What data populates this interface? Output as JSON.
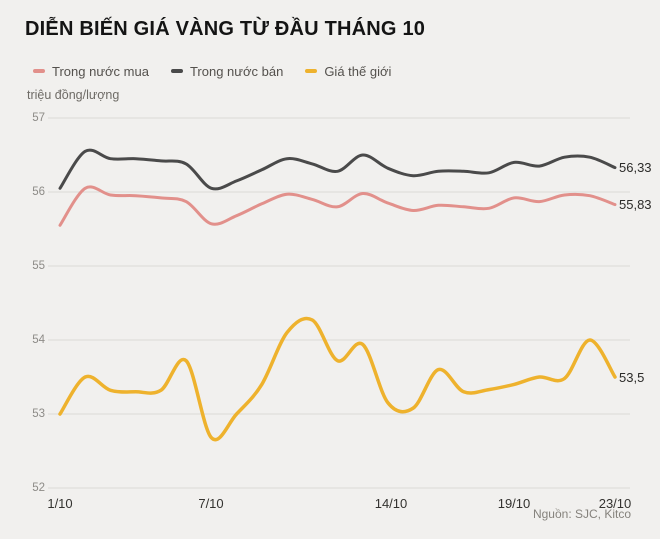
{
  "title": "DIỄN BIẾN GIÁ VÀNG TỪ ĐẦU THÁNG 10",
  "unit_label": "triệu đồng/lượng",
  "source": "Nguồn: SJC, Kitco",
  "colors": {
    "background": "#f1f0ee",
    "gridline": "#dbdad7",
    "buy_line": "#e2908b",
    "sell_line": "#4a4a4a",
    "world_line": "#eeb22d"
  },
  "legend": {
    "items": [
      {
        "label": "Trong nước mua",
        "color": "#e2908b"
      },
      {
        "label": "Trong nước bán",
        "color": "#4a4a4a"
      },
      {
        "label": "Giá thế giới",
        "color": "#eeb22d"
      }
    ]
  },
  "chart_data": {
    "type": "line",
    "title": "DIỄN BIẾN GIÁ VÀNG TỪ ĐẦU THÁNG 10",
    "ylabel": "triệu đồng/lượng",
    "xlabel": "",
    "ylim": [
      52,
      57
    ],
    "grid": true,
    "legend_position": "top",
    "x_days": [
      1,
      2,
      3,
      4,
      5,
      6,
      7,
      8,
      9,
      10,
      11,
      12,
      13,
      14,
      15,
      16,
      17,
      18,
      19,
      20,
      21,
      22,
      23
    ],
    "xticks": [
      {
        "day": 1,
        "label": "1/10"
      },
      {
        "day": 7,
        "label": "7/10"
      },
      {
        "day": 14,
        "label": "14/10"
      },
      {
        "day": 19,
        "label": "19/10"
      },
      {
        "day": 23,
        "label": "23/10"
      }
    ],
    "yticks": [
      "57",
      "56",
      "55",
      "54",
      "53",
      "52"
    ],
    "series": [
      {
        "key": "buy",
        "name": "Trong nước mua",
        "color": "#e2908b",
        "width": 3,
        "end_label": "55,83",
        "values": [
          55.55,
          56.05,
          55.96,
          55.95,
          55.92,
          55.87,
          55.57,
          55.68,
          55.84,
          55.97,
          55.9,
          55.8,
          55.98,
          55.85,
          55.75,
          55.82,
          55.8,
          55.78,
          55.92,
          55.87,
          55.96,
          55.95,
          55.83
        ]
      },
      {
        "key": "sell",
        "name": "Trong nước bán",
        "color": "#4a4a4a",
        "width": 3,
        "end_label": "56,33",
        "values": [
          56.05,
          56.55,
          56.45,
          56.45,
          56.42,
          56.38,
          56.05,
          56.15,
          56.3,
          56.45,
          56.38,
          56.28,
          56.5,
          56.32,
          56.22,
          56.28,
          56.28,
          56.26,
          56.4,
          56.35,
          56.47,
          56.47,
          56.33
        ]
      },
      {
        "key": "world",
        "name": "Giá thế giới",
        "color": "#eeb22d",
        "width": 3.5,
        "end_label": "53,5",
        "values": [
          53.0,
          53.5,
          53.32,
          53.3,
          53.32,
          53.72,
          52.68,
          53.0,
          53.4,
          54.1,
          54.27,
          53.72,
          53.94,
          53.15,
          53.08,
          53.6,
          53.3,
          53.33,
          53.4,
          53.5,
          53.48,
          54.0,
          53.5
        ]
      }
    ],
    "end_labels": {
      "sell": "56,33",
      "buy": "55,83",
      "world": "53,5"
    },
    "source": "Nguồn: SJC, Kitco"
  }
}
